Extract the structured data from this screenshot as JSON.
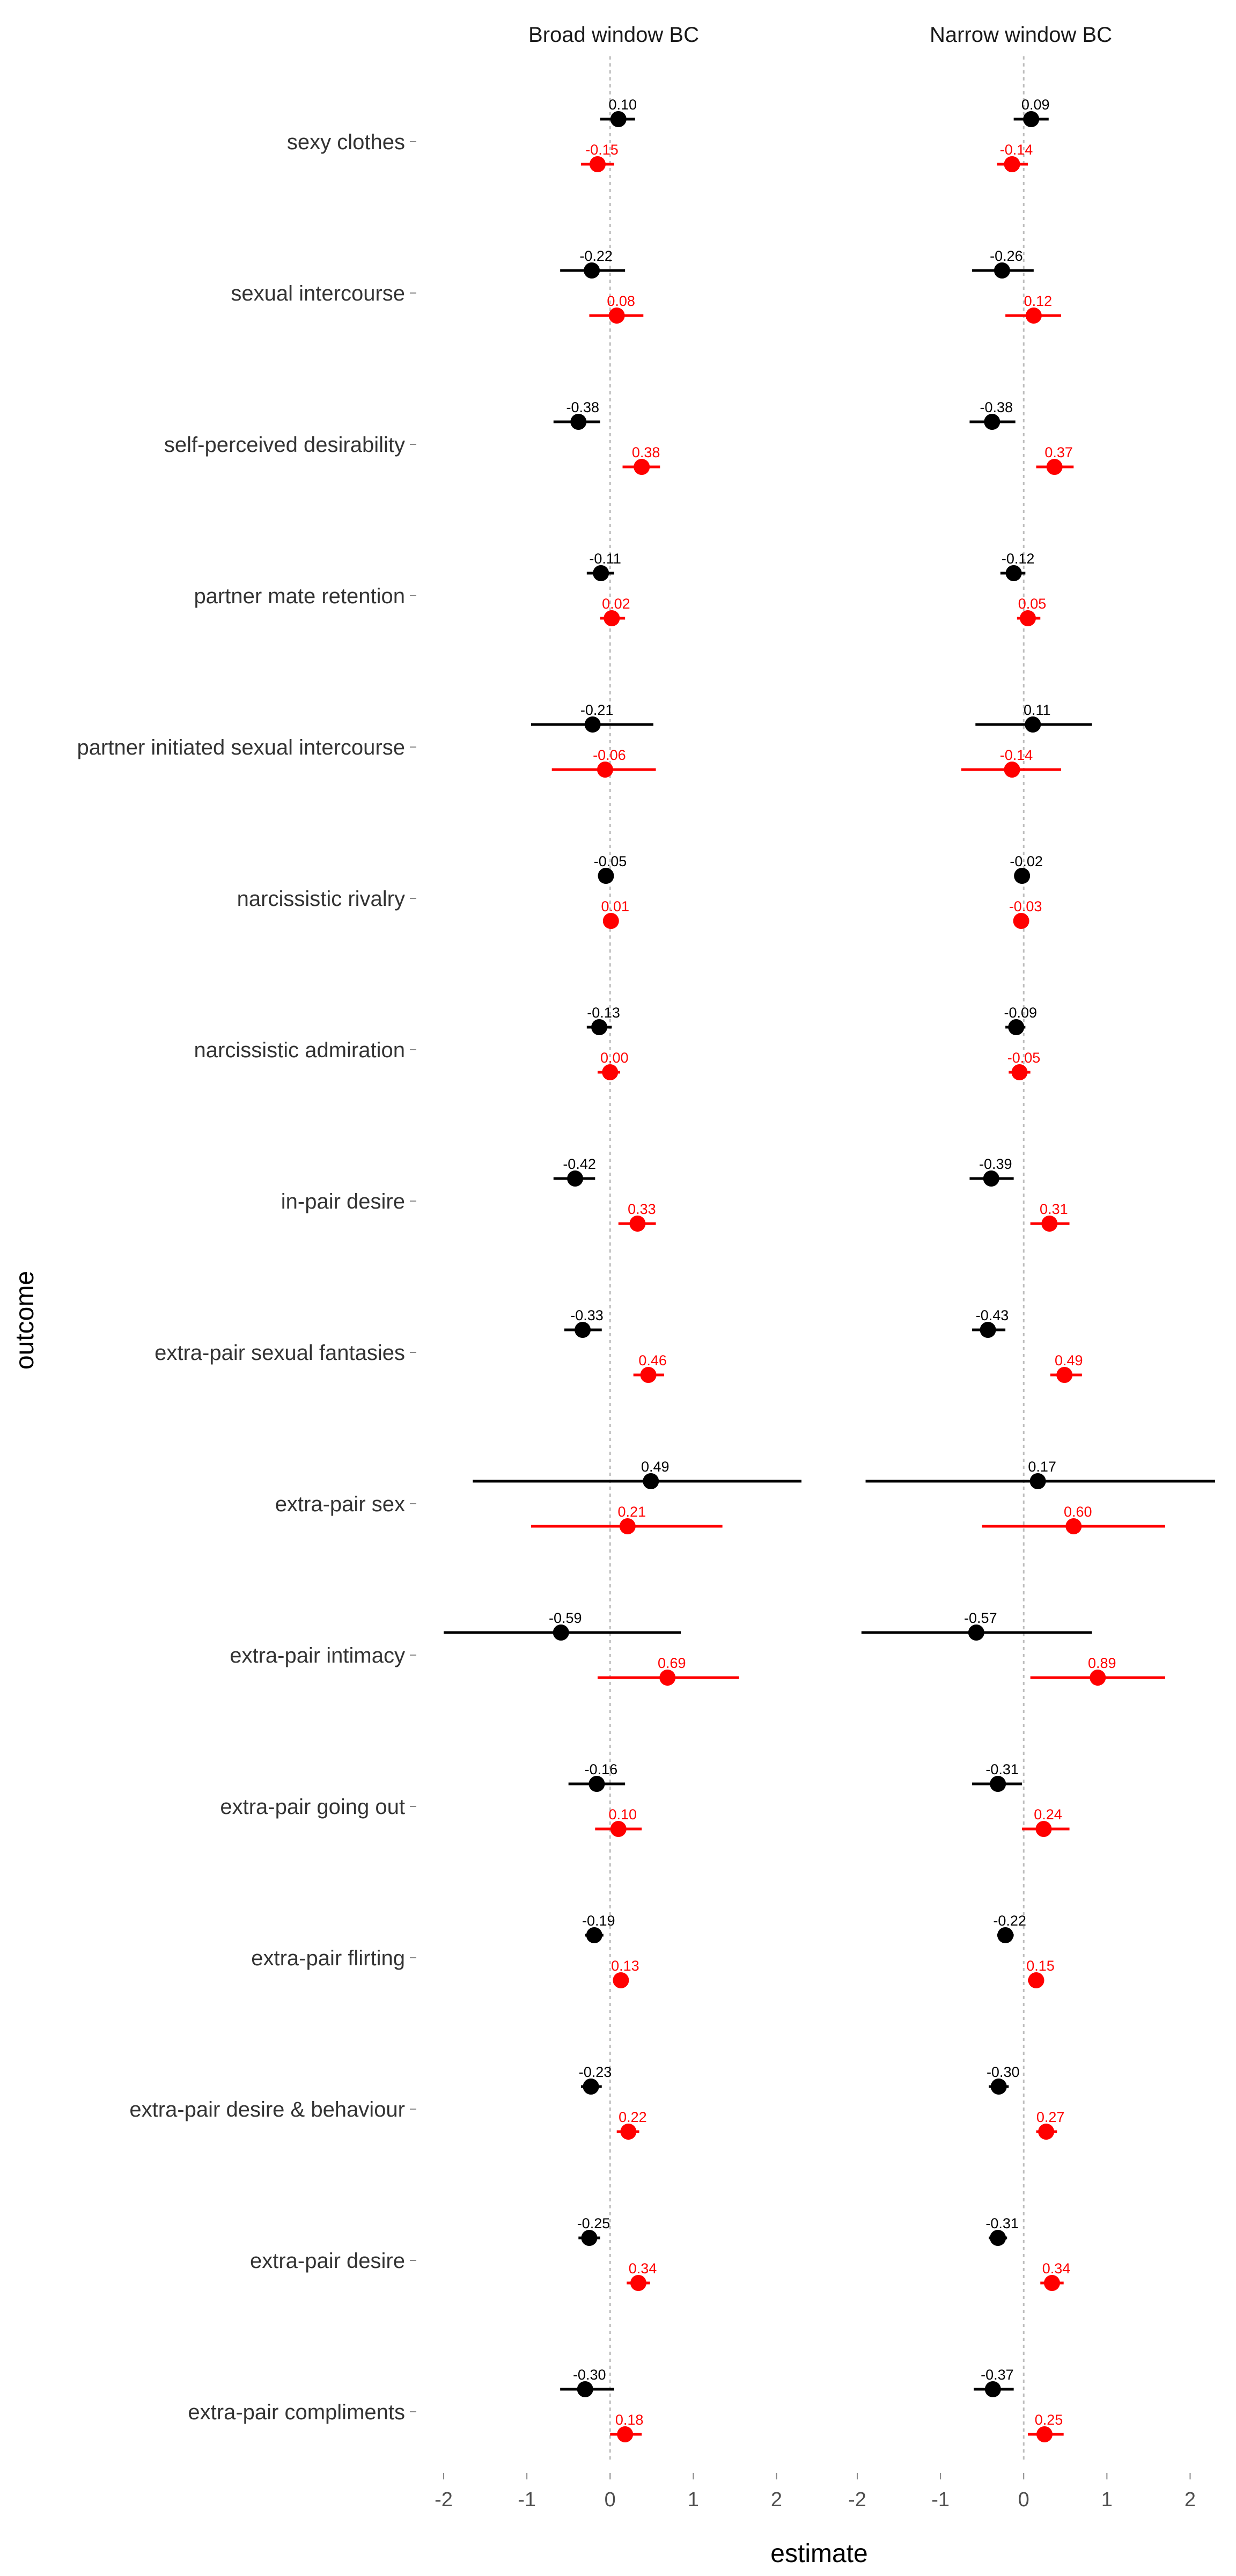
{
  "chart_data": {
    "type": "scatter",
    "subtype": "forest-plot point estimates with confidence intervals",
    "xlabel": "estimate",
    "ylabel": "outcome",
    "xlim": [
      -2.2,
      2.3
    ],
    "xticks": [
      -2,
      -1,
      0,
      1,
      2
    ],
    "reference_line": 0,
    "grid": false,
    "legend": "none",
    "colors": {
      "series_a": "#000000",
      "series_b": "#ff0000",
      "reference": "#bdbdbd"
    },
    "categories": [
      "sexy clothes",
      "sexual intercourse",
      "self-perceived desirability",
      "partner mate retention",
      "partner initiated sexual intercourse",
      "narcissistic rivalry",
      "narcissistic admiration",
      "in-pair desire",
      "extra-pair sexual fantasies",
      "extra-pair sex",
      "extra-pair intimacy",
      "extra-pair going out",
      "extra-pair flirting",
      "extra-pair desire & behaviour",
      "extra-pair desire",
      "extra-pair compliments"
    ],
    "panels": [
      {
        "title": "Broad window BC",
        "series": [
          {
            "color": "#000000",
            "estimates": [
              0.1,
              -0.22,
              -0.38,
              -0.11,
              -0.21,
              -0.05,
              -0.13,
              -0.42,
              -0.33,
              0.49,
              -0.59,
              -0.16,
              -0.19,
              -0.23,
              -0.25,
              -0.3
            ],
            "labels": [
              "0.10",
              "-0.22",
              "-0.38",
              "-0.11",
              "-0.21",
              "-0.05",
              "-0.13",
              "-0.42",
              "-0.33",
              "0.49",
              "-0.59",
              "-0.16",
              "-0.19",
              "-0.23",
              "-0.25",
              "-0.30"
            ],
            "ci_low": [
              -0.12,
              -0.6,
              -0.68,
              -0.28,
              -0.95,
              -0.1,
              -0.28,
              -0.68,
              -0.55,
              -1.65,
              -2.0,
              -0.5,
              -0.3,
              -0.35,
              -0.38,
              -0.6
            ],
            "ci_high": [
              0.3,
              0.18,
              -0.12,
              0.05,
              0.52,
              0.02,
              0.02,
              -0.18,
              -0.1,
              2.65,
              0.85,
              0.18,
              -0.08,
              -0.1,
              -0.12,
              0.05
            ]
          },
          {
            "color": "#ff0000",
            "estimates": [
              -0.15,
              0.08,
              0.38,
              0.02,
              -0.06,
              0.01,
              0.0,
              0.33,
              0.46,
              0.21,
              0.69,
              0.1,
              0.13,
              0.22,
              0.34,
              0.18
            ],
            "labels": [
              "-0.15",
              "0.08",
              "0.38",
              "0.02",
              "-0.06",
              "0.01",
              "0.00",
              "0.33",
              "0.46",
              "0.21",
              "0.69",
              "0.10",
              "0.13",
              "0.22",
              "0.34",
              "0.18"
            ],
            "ci_low": [
              -0.35,
              -0.25,
              0.15,
              -0.12,
              -0.7,
              -0.05,
              -0.15,
              0.1,
              0.28,
              -0.95,
              -0.15,
              -0.18,
              0.05,
              0.08,
              0.2,
              0.0
            ],
            "ci_high": [
              0.05,
              0.4,
              0.6,
              0.18,
              0.55,
              0.06,
              0.12,
              0.55,
              0.65,
              1.35,
              1.55,
              0.38,
              0.2,
              0.35,
              0.48,
              0.38
            ]
          }
        ]
      },
      {
        "title": "Narrow window BC",
        "series": [
          {
            "color": "#000000",
            "estimates": [
              0.09,
              -0.26,
              -0.38,
              -0.12,
              0.11,
              -0.02,
              -0.09,
              -0.39,
              -0.43,
              0.17,
              -0.57,
              -0.31,
              -0.22,
              -0.3,
              -0.31,
              -0.37
            ],
            "labels": [
              "0.09",
              "-0.26",
              "-0.38",
              "-0.12",
              "0.11",
              "-0.02",
              "-0.09",
              "-0.39",
              "-0.43",
              "0.17",
              "-0.57",
              "-0.31",
              "-0.22",
              "-0.30",
              "-0.31",
              "-0.37"
            ],
            "ci_low": [
              -0.12,
              -0.62,
              -0.65,
              -0.28,
              -0.58,
              -0.08,
              -0.22,
              -0.65,
              -0.62,
              -1.9,
              -1.95,
              -0.62,
              -0.32,
              -0.42,
              -0.42,
              -0.6
            ],
            "ci_high": [
              0.3,
              0.12,
              -0.1,
              0.02,
              0.82,
              0.05,
              0.02,
              -0.12,
              -0.22,
              2.3,
              0.82,
              -0.02,
              -0.12,
              -0.18,
              -0.2,
              -0.12
            ]
          },
          {
            "color": "#ff0000",
            "estimates": [
              -0.14,
              0.12,
              0.37,
              0.05,
              -0.14,
              -0.03,
              -0.05,
              0.31,
              0.49,
              0.6,
              0.89,
              0.24,
              0.15,
              0.27,
              0.34,
              0.25
            ],
            "labels": [
              "-0.14",
              "0.12",
              "0.37",
              "0.05",
              "-0.14",
              "-0.03",
              "-0.05",
              "0.31",
              "0.49",
              "0.60",
              "0.89",
              "0.24",
              "0.15",
              "0.27",
              "0.34",
              "0.25"
            ],
            "ci_low": [
              -0.32,
              -0.22,
              0.15,
              -0.08,
              -0.75,
              -0.08,
              -0.18,
              0.08,
              0.32,
              -0.5,
              0.08,
              -0.02,
              0.05,
              0.15,
              0.2,
              0.05
            ],
            "ci_high": [
              0.05,
              0.45,
              0.6,
              0.2,
              0.45,
              0.02,
              0.08,
              0.55,
              0.7,
              1.7,
              1.7,
              0.55,
              0.22,
              0.4,
              0.48,
              0.48
            ]
          }
        ]
      }
    ]
  }
}
